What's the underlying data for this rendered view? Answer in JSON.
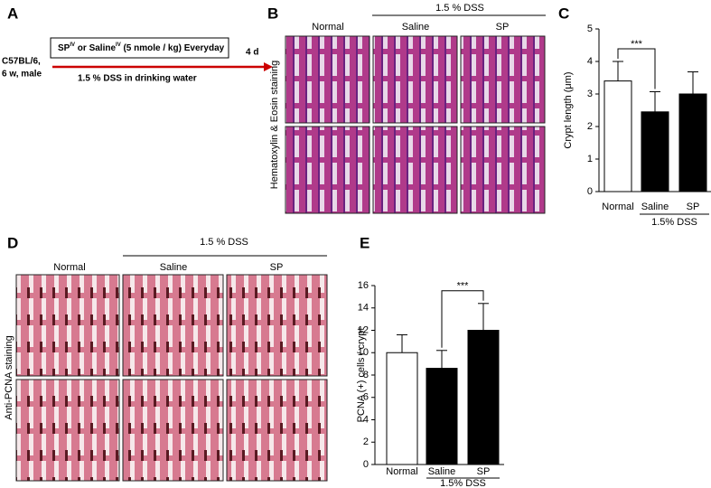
{
  "panel_a": {
    "label": "A",
    "box_text": [
      "SP",
      "IV",
      " or Saline",
      "IV",
      " (5 nmole / kg) Everyday"
    ],
    "mouse": [
      "C57BL/6,",
      "6 w, male"
    ],
    "end_label": "4 d",
    "treatment": "1.5 % DSS in drinking water"
  },
  "panel_b": {
    "label": "B",
    "columns": [
      "Normal",
      "Saline",
      "SP"
    ],
    "group": "1.5 % DSS",
    "row_label": "Hematoxylin & Eosin staining"
  },
  "panel_c": {
    "label": "C"
  },
  "panel_d": {
    "label": "D",
    "columns": [
      "Normal",
      "Saline",
      "SP"
    ],
    "group": "1.5 % DSS",
    "row_label": "Anti-PCNA staining"
  },
  "panel_e": {
    "label": "E"
  },
  "chart_data": [
    {
      "type": "bar",
      "y_label": "Crypt length (μm)",
      "categories": [
        "Normal",
        "Saline",
        "SP"
      ],
      "values": [
        3.4,
        2.45,
        3.0
      ],
      "errors": [
        0.6,
        0.62,
        0.68
      ],
      "colors": [
        "#ffffff",
        "#000000",
        "#000000"
      ],
      "ylim": [
        0,
        5
      ],
      "yticks": [
        0,
        1,
        2,
        3,
        4,
        5
      ],
      "group_label": "1.5% DSS",
      "significance": "***"
    },
    {
      "type": "bar",
      "y_label": "PCNA  (+) cells / crypt",
      "categories": [
        "Normal",
        "Saline",
        "SP"
      ],
      "values": [
        10,
        8.6,
        12
      ],
      "errors": [
        1.6,
        1.6,
        2.4
      ],
      "colors": [
        "#ffffff",
        "#000000",
        "#000000"
      ],
      "ylim": [
        0,
        16
      ],
      "yticks": [
        0,
        2,
        4,
        6,
        8,
        10,
        12,
        14,
        16
      ],
      "group_label": "1.5% DSS",
      "significance": "***"
    }
  ]
}
